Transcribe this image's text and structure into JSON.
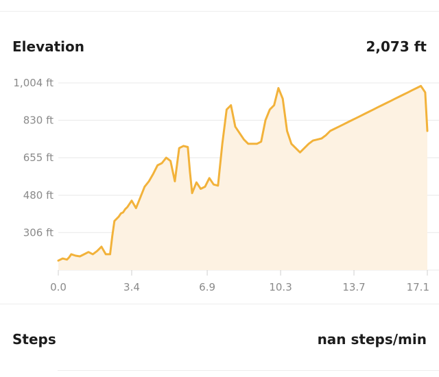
{
  "elevation": {
    "title": "Elevation",
    "value": "2,073 ft"
  },
  "steps": {
    "title": "Steps",
    "value": "nan steps/min"
  },
  "colors": {
    "line": "#f2b23a",
    "fill": "#fdf2e2",
    "grid": "#e8e8e8",
    "text": "#8a8a8a"
  },
  "chart_data": {
    "type": "area",
    "title": "Elevation",
    "xlabel": "",
    "ylabel": "",
    "x_tick_labels": [
      "0.0",
      "3.4",
      "6.9",
      "10.3",
      "13.7",
      "17.1"
    ],
    "x_ticks": [
      0.0,
      3.4,
      6.9,
      10.3,
      13.7,
      17.1
    ],
    "y_tick_labels": [
      "1,004 ft",
      "830 ft",
      "655 ft",
      "480 ft",
      "306 ft"
    ],
    "y_ticks": [
      1004,
      830,
      655,
      480,
      306
    ],
    "xlim": [
      0,
      17.1
    ],
    "ylim": [
      131,
      1004
    ],
    "grid": true,
    "series": [
      {
        "x": [
          0.0,
          0.2,
          0.4,
          0.5,
          0.6,
          0.8,
          1.0,
          1.2,
          1.4,
          1.6,
          1.8,
          2.0,
          2.2,
          2.4,
          2.5,
          2.6,
          2.8,
          2.9,
          3.0,
          3.1,
          3.2,
          3.4,
          3.6,
          3.8,
          4.0,
          4.2,
          4.4,
          4.6,
          4.8,
          5.0,
          5.2,
          5.4,
          5.6,
          5.8,
          6.0,
          6.1,
          6.2,
          6.4,
          6.6,
          6.8,
          7.0,
          7.2,
          7.4,
          7.6,
          7.8,
          8.0,
          8.2,
          8.4,
          8.6,
          8.8,
          9.0,
          9.2,
          9.4,
          9.6,
          9.8,
          10.0,
          10.2,
          10.4,
          10.6,
          10.8,
          11.0,
          11.2,
          11.4,
          11.6,
          11.8,
          12.0,
          12.2,
          12.4,
          12.6,
          12.8,
          13.0,
          13.2,
          13.4,
          13.6,
          13.8,
          14.0,
          14.2,
          14.4,
          14.6,
          14.8,
          15.0,
          15.2,
          15.4,
          15.6,
          15.8,
          16.0,
          16.2,
          16.4,
          16.6,
          16.8,
          17.0,
          17.1
        ],
        "values": [
          175,
          185,
          180,
          190,
          205,
          198,
          195,
          205,
          215,
          205,
          220,
          240,
          205,
          205,
          290,
          360,
          380,
          395,
          400,
          415,
          425,
          455,
          420,
          470,
          520,
          545,
          580,
          620,
          630,
          655,
          640,
          545,
          700,
          710,
          705,
          590,
          490,
          540,
          510,
          520,
          560,
          530,
          525,
          720,
          880,
          900,
          800,
          770,
          740,
          720,
          720,
          720,
          730,
          830,
          880,
          900,
          980,
          930,
          780,
          720,
          700,
          680,
          700,
          720,
          735,
          740,
          745,
          760,
          780,
          790,
          800,
          810,
          820,
          830,
          840,
          850,
          860,
          870,
          880,
          890,
          900,
          910,
          920,
          930,
          940,
          950,
          960,
          970,
          980,
          990,
          960,
          780
        ]
      }
    ]
  }
}
